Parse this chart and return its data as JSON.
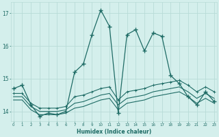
{
  "xlabel": "Humidex (Indice chaleur)",
  "background_color": "#d4efec",
  "grid_color": "#b8dbd7",
  "line_color": "#1e6b65",
  "x_values": [
    0,
    1,
    2,
    3,
    4,
    5,
    6,
    7,
    8,
    9,
    10,
    11,
    12,
    13,
    14,
    15,
    16,
    17,
    18,
    19,
    20,
    21,
    22,
    23
  ],
  "series_main": [
    14.7,
    14.8,
    14.2,
    13.85,
    13.95,
    13.9,
    14.0,
    15.2,
    15.45,
    16.35,
    17.1,
    16.6,
    13.95,
    16.35,
    16.5,
    15.85,
    16.4,
    16.3,
    15.1,
    14.85,
    14.45,
    14.2,
    14.6,
    14.3
  ],
  "series_line1": [
    14.55,
    14.55,
    14.25,
    14.1,
    14.1,
    14.1,
    14.15,
    14.45,
    14.5,
    14.6,
    14.7,
    14.75,
    14.35,
    14.6,
    14.65,
    14.7,
    14.8,
    14.85,
    14.9,
    14.95,
    14.8,
    14.6,
    14.75,
    14.6
  ],
  "series_line2": [
    14.45,
    14.45,
    14.15,
    14.0,
    14.0,
    14.0,
    14.05,
    14.25,
    14.3,
    14.4,
    14.5,
    14.55,
    14.2,
    14.4,
    14.45,
    14.5,
    14.6,
    14.65,
    14.7,
    14.75,
    14.6,
    14.4,
    14.55,
    14.4
  ],
  "series_line3": [
    14.35,
    14.35,
    14.05,
    13.9,
    13.9,
    13.9,
    13.95,
    14.1,
    14.15,
    14.25,
    14.35,
    14.4,
    14.05,
    14.25,
    14.3,
    14.35,
    14.45,
    14.5,
    14.55,
    14.6,
    14.45,
    14.25,
    14.4,
    14.25
  ],
  "ylim": [
    13.7,
    17.35
  ],
  "yticks": [
    14,
    15,
    16,
    17
  ],
  "xlim": [
    -0.3,
    23.3
  ]
}
